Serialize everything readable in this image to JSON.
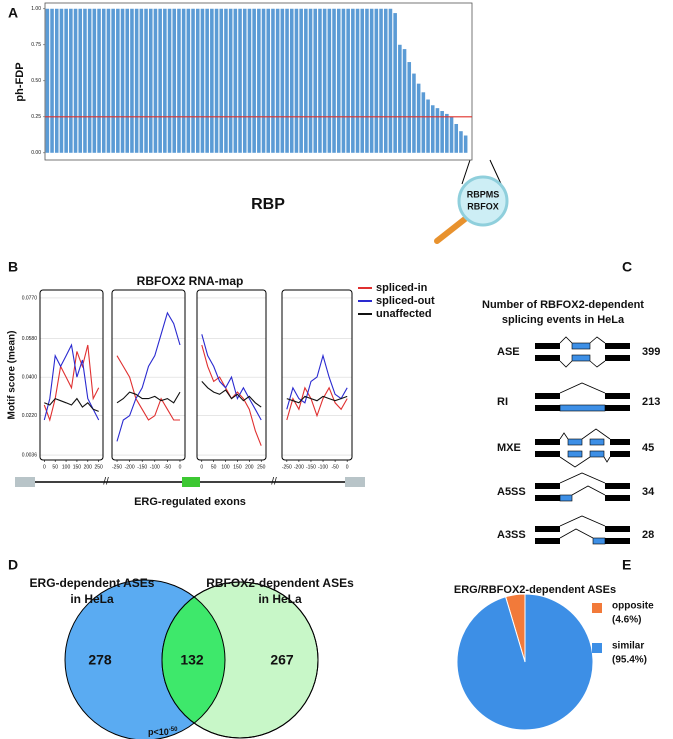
{
  "panel_labels": [
    "A",
    "B",
    "C",
    "D",
    "E"
  ],
  "chart_data": [
    {
      "type": "bar",
      "y_label": "ph-FDP",
      "x_label": "RBP",
      "categories": [
        null,
        null,
        null,
        null,
        null,
        null,
        null,
        null,
        null,
        null,
        null,
        null,
        null,
        null,
        null,
        null,
        null,
        null,
        null,
        null,
        null,
        null,
        null,
        null,
        null,
        null,
        null,
        null,
        null,
        null,
        null,
        null,
        null,
        null,
        null,
        null,
        null,
        null,
        null,
        null,
        null,
        null,
        null,
        null,
        null,
        null,
        null,
        null,
        null,
        null,
        null,
        null,
        null,
        null,
        null,
        null,
        null,
        null,
        null,
        null,
        null,
        null,
        null,
        null,
        null,
        null,
        null,
        null,
        null,
        null,
        null,
        null,
        null,
        null,
        null,
        null,
        null,
        null,
        null,
        null,
        null,
        null,
        null,
        null,
        null,
        null,
        null,
        null,
        null,
        null
      ],
      "values": [
        1,
        1,
        1,
        1,
        1,
        1,
        1,
        1,
        1,
        1,
        1,
        1,
        1,
        1,
        1,
        1,
        1,
        1,
        1,
        1,
        1,
        1,
        1,
        1,
        1,
        1,
        1,
        1,
        1,
        1,
        1,
        1,
        1,
        1,
        1,
        1,
        1,
        1,
        1,
        1,
        1,
        1,
        1,
        1,
        1,
        1,
        1,
        1,
        1,
        1,
        1,
        1,
        1,
        1,
        1,
        1,
        1,
        1,
        1,
        1,
        1,
        1,
        1,
        1,
        1,
        1,
        1,
        1,
        1,
        1,
        1,
        1,
        1,
        1,
        0.97,
        0.75,
        0.72,
        0.63,
        0.55,
        0.48,
        0.42,
        0.37,
        0.33,
        0.31,
        0.29,
        0.27,
        0.25,
        0.2,
        0.15,
        0.12
      ],
      "color": "#5b9bd5",
      "ylim": [
        -0.05,
        1.04
      ],
      "yticks": [
        {
          "value": 0,
          "label": "0.00"
        },
        {
          "value": 0.25,
          "label": "0.25"
        },
        {
          "value": 0.5,
          "label": "0.50"
        },
        {
          "value": 0.75,
          "label": "0.75"
        },
        {
          "value": 1,
          "label": "1.00"
        }
      ],
      "hline": {
        "value": 0.25,
        "color": "#e0302a"
      },
      "callout": [
        "RBPMS",
        "RBFOX"
      ]
    },
    {
      "type": "line",
      "title": "RBFOX2 RNA-map",
      "y_label": "Motif score (mean)",
      "x_label": "ERG-regulated exons",
      "ylim": [
        0.0013,
        0.0807
      ],
      "yticks": [
        {
          "value": 0.0036,
          "label": "0.0036"
        },
        {
          "value": 0.022,
          "label": "0.0220"
        },
        {
          "value": 0.04,
          "label": "0.0400"
        },
        {
          "value": 0.058,
          "label": "0.0580"
        },
        {
          "value": 0.077,
          "label": "0.0770"
        }
      ],
      "grid": true,
      "panels": [
        {
          "x": [
            0,
            25,
            50,
            75,
            100,
            125,
            150,
            175,
            200,
            225,
            250
          ],
          "xlim": [
            -20,
            270
          ],
          "xticks": [
            0,
            50,
            100,
            150,
            200,
            250
          ]
        },
        {
          "x": [
            -250,
            -225,
            -200,
            -175,
            -150,
            -125,
            -100,
            -75,
            -50,
            -25,
            0
          ],
          "xlim": [
            -270,
            20
          ],
          "xticks": [
            -250,
            -200,
            -150,
            -100,
            -50,
            0
          ]
        },
        {
          "x": [
            0,
            25,
            50,
            75,
            100,
            125,
            150,
            175,
            200,
            225,
            250
          ],
          "xlim": [
            -20,
            270
          ],
          "xticks": [
            0,
            50,
            100,
            150,
            200,
            250
          ]
        },
        {
          "x": [
            -250,
            -225,
            -200,
            -175,
            -150,
            -125,
            -100,
            -75,
            -50,
            -25,
            0
          ],
          "xlim": [
            -270,
            20
          ],
          "xticks": [
            -250,
            -200,
            -150,
            -100,
            -50,
            0
          ]
        }
      ],
      "series": [
        {
          "name": "spliced-in",
          "color": "#e03030",
          "values": [
            [
              0.027,
              0.02,
              0.03,
              0.045,
              0.04,
              0.035,
              0.052,
              0.045,
              0.055,
              0.03,
              0.035
            ],
            [
              0.05,
              0.045,
              0.04,
              0.03,
              0.025,
              0.02,
              0.022,
              0.03,
              0.025,
              0.02,
              0.02
            ],
            [
              0.055,
              0.045,
              0.038,
              0.04,
              0.035,
              0.03,
              0.033,
              0.03,
              0.025,
              0.015,
              0.008
            ],
            [
              0.02,
              0.03,
              0.025,
              0.035,
              0.03,
              0.022,
              0.03,
              0.035,
              0.028,
              0.025,
              0.03
            ]
          ]
        },
        {
          "name": "spliced-out",
          "color": "#2a2ad0",
          "values": [
            [
              0.02,
              0.03,
              0.05,
              0.045,
              0.05,
              0.055,
              0.04,
              0.048,
              0.03,
              0.025,
              0.02
            ],
            [
              0.01,
              0.02,
              0.022,
              0.03,
              0.035,
              0.045,
              0.05,
              0.06,
              0.07,
              0.065,
              0.055
            ],
            [
              0.06,
              0.05,
              0.045,
              0.038,
              0.035,
              0.04,
              0.03,
              0.035,
              0.03,
              0.025,
              0.02
            ],
            [
              0.025,
              0.035,
              0.03,
              0.028,
              0.038,
              0.04,
              0.05,
              0.04,
              0.032,
              0.03,
              0.035
            ]
          ]
        },
        {
          "name": "unaffected",
          "color": "#111111",
          "values": [
            [
              0.028,
              0.027,
              0.03,
              0.029,
              0.028,
              0.027,
              0.03,
              0.026,
              0.028,
              0.025,
              0.024
            ],
            [
              0.028,
              0.03,
              0.033,
              0.032,
              0.03,
              0.03,
              0.031,
              0.029,
              0.03,
              0.028,
              0.033
            ],
            [
              0.038,
              0.035,
              0.033,
              0.032,
              0.034,
              0.03,
              0.032,
              0.029,
              0.031,
              0.028,
              0.026
            ],
            [
              0.03,
              0.029,
              0.028,
              0.031,
              0.03,
              0.029,
              0.031,
              0.03,
              0.029,
              0.03,
              0.031
            ]
          ]
        }
      ]
    },
    {
      "type": "venn",
      "sets": [
        {
          "name": [
            "ERG-dependent ASEs",
            "in HeLa"
          ],
          "color": "#5aabf2"
        },
        {
          "name": [
            "RBFOX2-dependent ASEs",
            "in HeLa"
          ],
          "color": "#c8f7c8"
        }
      ],
      "overlap_color": "#3ee86b",
      "values": [
        278,
        132,
        267
      ],
      "p_value": {
        "text": "p<10",
        "exponent": "-50"
      }
    },
    {
      "type": "pie",
      "title": "ERG/RBFOX2-dependent ASEs",
      "categories": [
        "opposite",
        "similar"
      ],
      "values": [
        4.6,
        95.4
      ],
      "value_labels": [
        "(4.6%)",
        "(95.4%)"
      ],
      "colors": [
        "#f27a3a",
        "#3d8fe6"
      ]
    }
  ],
  "splicing_events": {
    "title": [
      "Number of RBFOX2-dependent",
      "splicing events in HeLa"
    ],
    "rows": [
      {
        "label": "ASE",
        "count": 399
      },
      {
        "label": "RI",
        "count": 213
      },
      {
        "label": "MXE",
        "count": 45
      },
      {
        "label": "A5SS",
        "count": 34
      },
      {
        "label": "A3SS",
        "count": 28
      }
    ]
  }
}
